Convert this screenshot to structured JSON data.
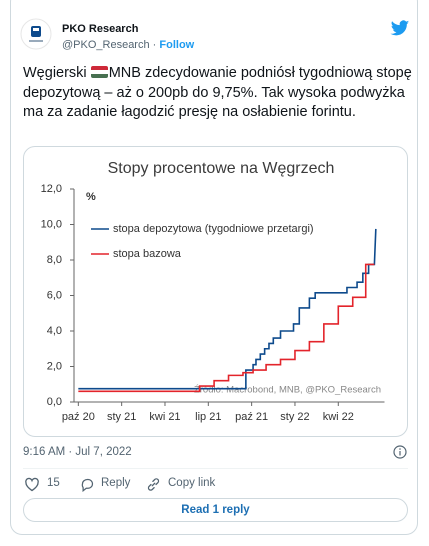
{
  "tweet": {
    "name": "PKO Research",
    "handle": "@PKO_Research",
    "separator": "·",
    "follow": "Follow",
    "text_parts": [
      "Węgierski ",
      "MNB zdecydowanie podniósł tygodniową stopę depozytową – aż o 200pb do 9,75%. Tak wysoka podwyżka ma za zadanie łagodzić presję na osłabienie forintu."
    ],
    "timestamp": "9:16 AM · Jul 7, 2022",
    "likes": "15",
    "reply": "Reply",
    "copy_link": "Copy link",
    "read_replies": "Read 1 reply"
  },
  "chart_data": {
    "type": "line",
    "title": "Stopy procentowe na Węgrzech",
    "y_unit": "%",
    "source": "Źródło: Macrobond, MNB, @PKO_Research",
    "xlim": [
      -0.3,
      21.2
    ],
    "xticks": [
      {
        "value": 0,
        "label": "paź 20"
      },
      {
        "value": 3,
        "label": "sty 21"
      },
      {
        "value": 6,
        "label": "kwi 21"
      },
      {
        "value": 9,
        "label": "lip 21"
      },
      {
        "value": 12,
        "label": "paź 21"
      },
      {
        "value": 15,
        "label": "sty 22"
      },
      {
        "value": 18,
        "label": "kwi 22"
      }
    ],
    "ylim": [
      0,
      12
    ],
    "yticks": [
      {
        "value": 0,
        "label": "0,0"
      },
      {
        "value": 2,
        "label": "2,0"
      },
      {
        "value": 4,
        "label": "4,0"
      },
      {
        "value": 6,
        "label": "6,0"
      },
      {
        "value": 8,
        "label": "8,0"
      },
      {
        "value": 10,
        "label": "10,0"
      },
      {
        "value": 12,
        "label": "12,0"
      }
    ],
    "series": [
      {
        "name": "stopa depozytowa (tygodniowe przetargi)",
        "color": "#0d4a8c",
        "x": [
          0,
          11.6,
          11.6,
          12.1,
          12.1,
          12.3,
          12.3,
          12.6,
          12.6,
          12.9,
          12.9,
          13.2,
          13.2,
          13.5,
          13.5,
          14.0,
          14.0,
          14.9,
          14.9,
          15.3,
          15.3,
          16.0,
          16.0,
          16.4,
          16.4,
          18.6,
          18.6,
          19.3,
          19.3,
          19.7,
          19.7,
          20.1,
          20.1,
          20.5,
          20.6
        ],
        "values": [
          0.75,
          0.75,
          1.8,
          1.8,
          2.1,
          2.1,
          2.4,
          2.4,
          2.7,
          2.7,
          3.0,
          3.0,
          3.3,
          3.3,
          3.6,
          3.6,
          4.0,
          4.0,
          4.4,
          4.4,
          5.3,
          5.3,
          5.85,
          5.85,
          6.15,
          6.15,
          6.45,
          6.45,
          6.75,
          6.75,
          7.25,
          7.25,
          7.75,
          7.75,
          9.75
        ]
      },
      {
        "name": "stopa bazowa",
        "color": "#e3242b",
        "x": [
          0,
          8.4,
          8.4,
          9.4,
          9.4,
          10.4,
          10.4,
          11.4,
          11.4,
          12.1,
          12.1,
          13.0,
          13.0,
          14.0,
          14.0,
          15.0,
          15.0,
          16.0,
          16.0,
          17.0,
          17.0,
          18.0,
          18.0,
          19.0,
          19.0,
          19.9,
          19.9,
          20.5
        ],
        "values": [
          0.6,
          0.6,
          0.9,
          0.9,
          1.2,
          1.2,
          1.5,
          1.5,
          1.65,
          1.65,
          1.8,
          1.8,
          2.1,
          2.1,
          2.4,
          2.4,
          2.9,
          2.9,
          3.4,
          3.4,
          4.4,
          4.4,
          5.4,
          5.4,
          5.9,
          5.9,
          7.75,
          7.75
        ]
      }
    ]
  }
}
